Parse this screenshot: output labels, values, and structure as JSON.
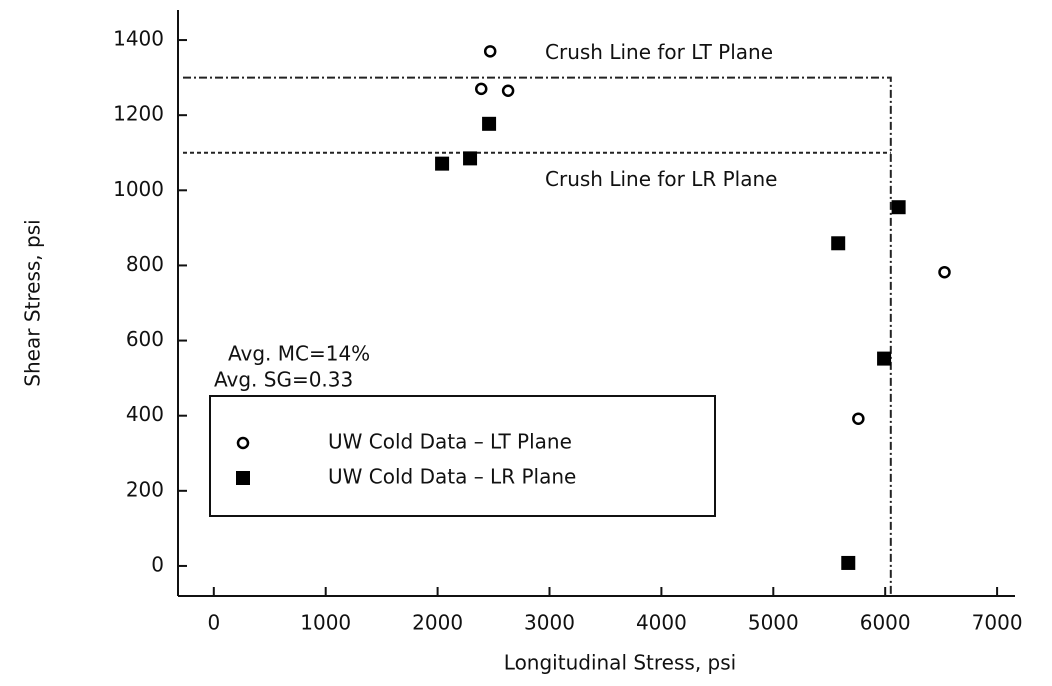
{
  "chart_data": {
    "type": "scatter",
    "xlabel": "Longitudinal Stress, psi",
    "ylabel": "Shear Stress, psi",
    "xlim": [
      -320,
      7160
    ],
    "ylim": [
      -80,
      1480
    ],
    "xticks": [
      0,
      1000,
      2000,
      3000,
      4000,
      5000,
      6000,
      7000
    ],
    "yticks": [
      0,
      200,
      400,
      600,
      800,
      1000,
      1200,
      1400
    ],
    "series": [
      {
        "name": "UW Cold Data – LT Plane",
        "marker": "circle",
        "color": "#000000",
        "x": [
          2470,
          2390,
          2630,
          5760,
          6530
        ],
        "values": [
          1370,
          1270,
          1265,
          392,
          782
        ]
      },
      {
        "name": "UW Cold Data – LR Plane",
        "marker": "square",
        "color": "#000000",
        "x": [
          2040,
          2290,
          2460,
          5580,
          5990,
          6120,
          5670
        ],
        "values": [
          1071,
          1085,
          1177,
          859,
          552,
          955,
          8
        ]
      }
    ],
    "crush_lines": [
      {
        "label": "Crush Line for LT Plane",
        "y": 1300,
        "x_end": 6050,
        "style": "dashdot"
      },
      {
        "label": "Crush Line for LR Plane",
        "y": 1100,
        "x_end": 6050,
        "style": "dashed"
      }
    ],
    "annotations": [
      "Avg. MC=14%",
      "Avg. SG=0.33"
    ],
    "legend": "lower-left"
  }
}
